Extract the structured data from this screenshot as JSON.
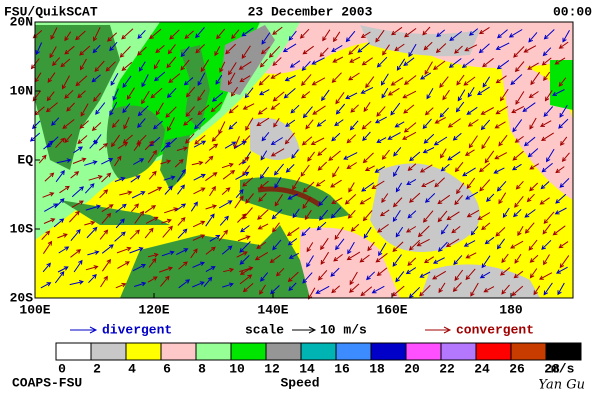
{
  "header": {
    "source": "FSU/QuikSCAT",
    "date": "23 December 2003",
    "time": "00:00"
  },
  "map": {
    "lat_labels": [
      "20N",
      "10N",
      "EQ",
      "10S",
      "20S"
    ],
    "lon_labels": [
      "100E",
      "120E",
      "140E",
      "160E",
      "180"
    ]
  },
  "legend": {
    "divergent": "divergent",
    "scale": "scale",
    "scale_value": "10 m/s",
    "convergent": "convergent"
  },
  "colorbar": {
    "colors": [
      "#ffffff",
      "#c8c8c8",
      "#ffff00",
      "#ffc8c8",
      "#96ff96",
      "#00e600",
      "#969696",
      "#00b4b4",
      "#3c8cff",
      "#0000c8",
      "#ff50ff",
      "#b478ff",
      "#ff0000",
      "#c83c00",
      "#000000"
    ],
    "labels": [
      0,
      2,
      4,
      6,
      8,
      10,
      12,
      14,
      16,
      18,
      20,
      22,
      24,
      26,
      28
    ],
    "unit": "m/s",
    "title": "Speed"
  },
  "footer": {
    "left": "COAPS-FSU",
    "signature": "Yan Gu"
  }
}
